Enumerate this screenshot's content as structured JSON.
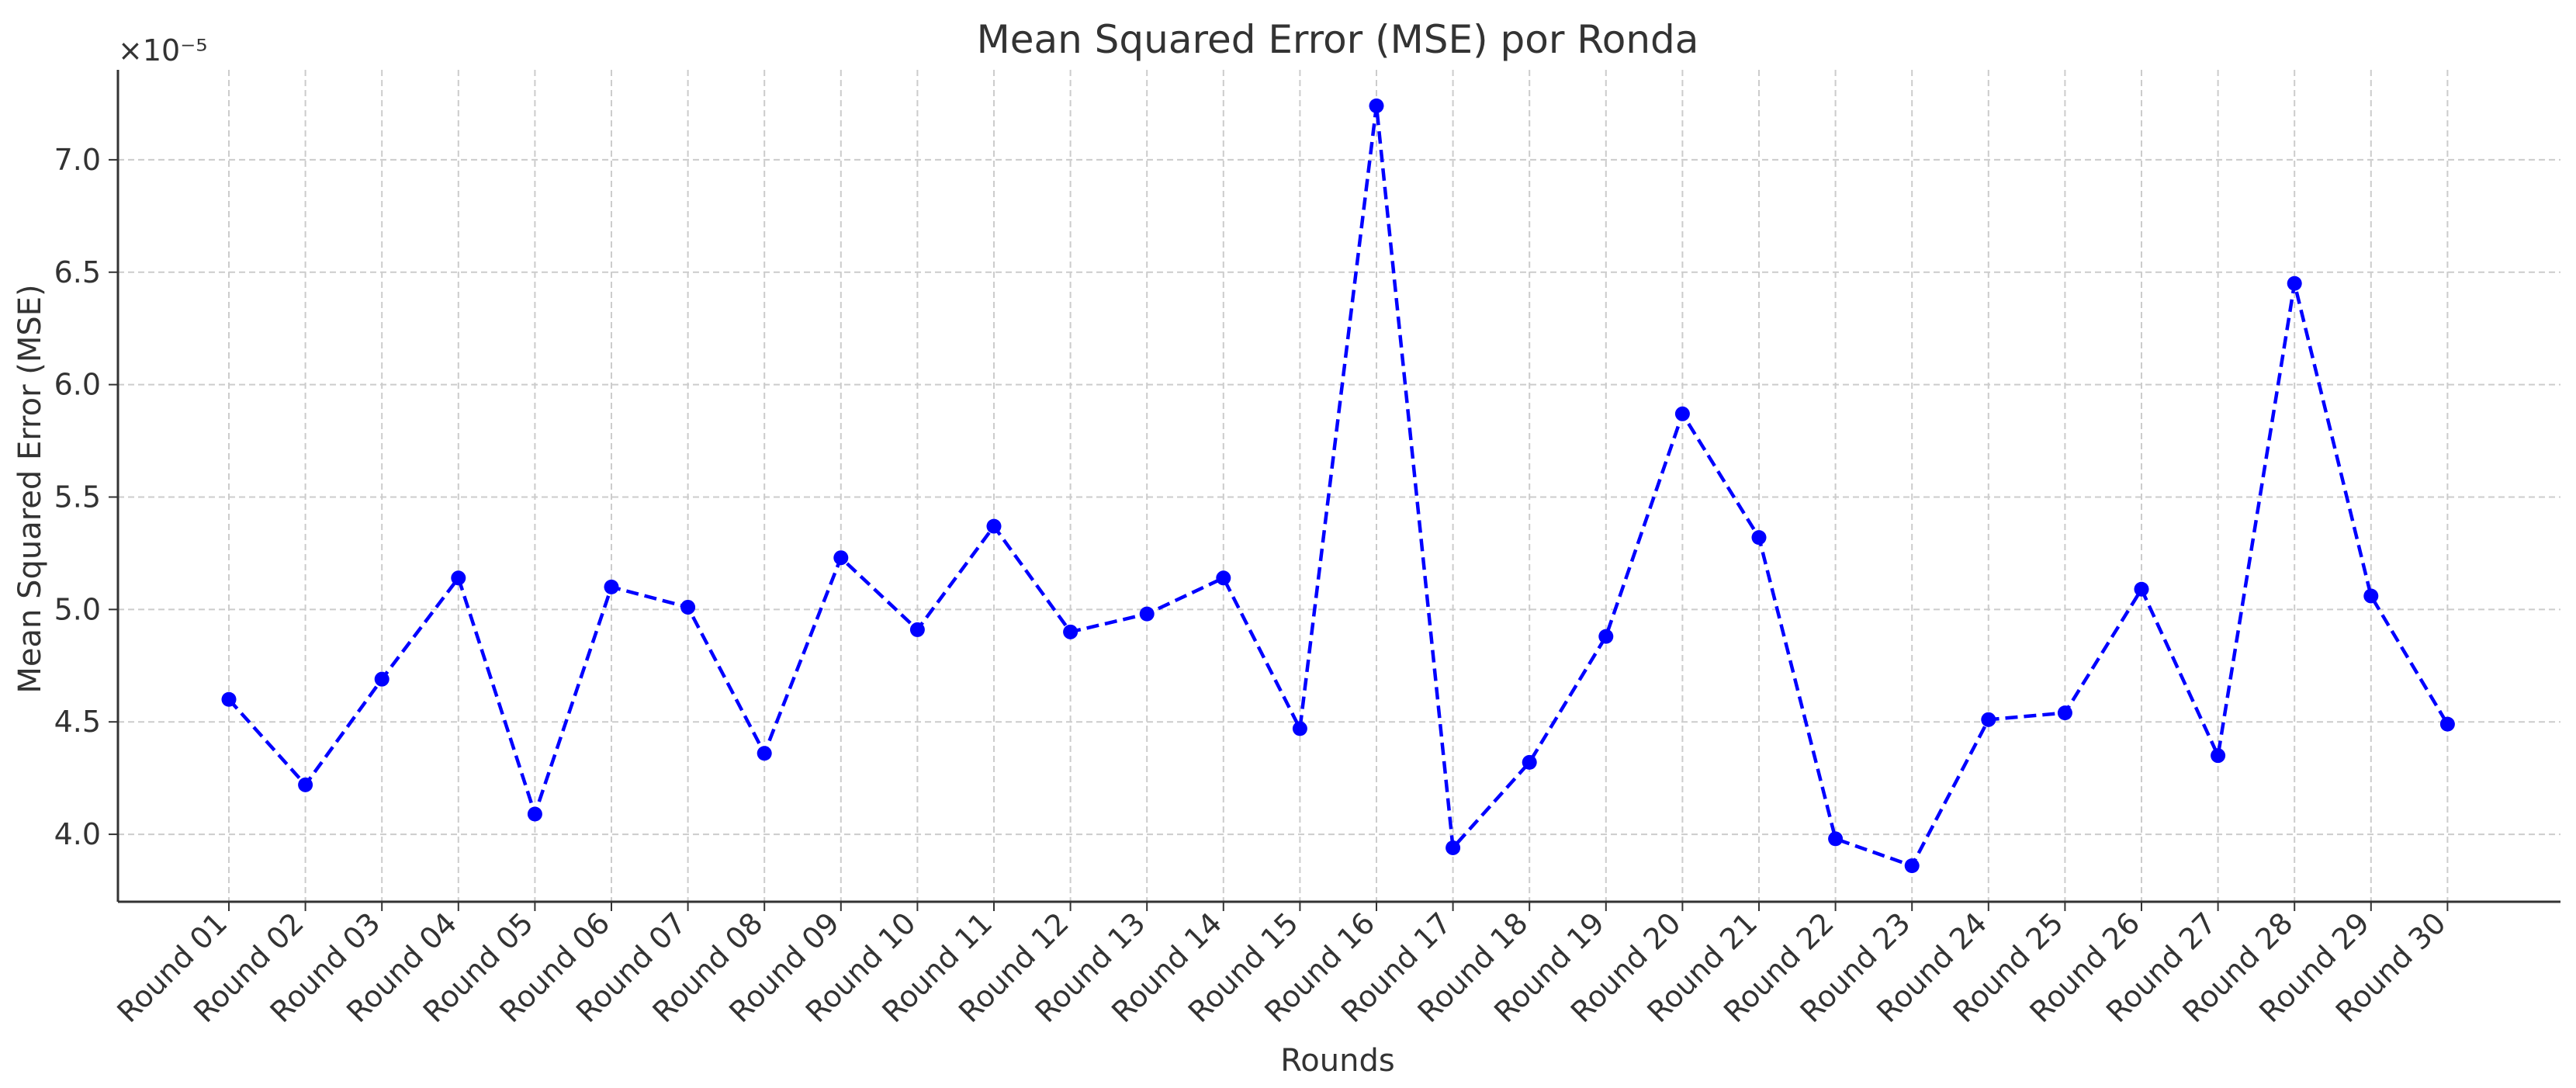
{
  "chart_data": {
    "type": "line",
    "title": "Mean Squared Error (MSE) por Ronda",
    "xlabel": "Rounds",
    "ylabel": "Mean Squared Error (MSE)",
    "y_multiplier_label": "×10⁻⁵",
    "y_scale": 1e-05,
    "ylim": [
      3.7,
      7.4
    ],
    "yticks": [
      4.0,
      4.5,
      5.0,
      5.5,
      6.0,
      6.5,
      7.0
    ],
    "ytick_labels": [
      "4.0",
      "4.5",
      "5.0",
      "5.5",
      "6.0",
      "6.5",
      "7.0"
    ],
    "grid": true,
    "color": "#0000ff",
    "line_style": "dashed",
    "marker": "circle",
    "categories": [
      "Round 01",
      "Round 02",
      "Round 03",
      "Round 04",
      "Round 05",
      "Round 06",
      "Round 07",
      "Round 08",
      "Round 09",
      "Round 10",
      "Round 11",
      "Round 12",
      "Round 13",
      "Round 14",
      "Round 15",
      "Round 16",
      "Round 17",
      "Round 18",
      "Round 19",
      "Round 20",
      "Round 21",
      "Round 22",
      "Round 23",
      "Round 24",
      "Round 25",
      "Round 26",
      "Round 27",
      "Round 28",
      "Round 29",
      "Round 30"
    ],
    "values": [
      4.6,
      4.22,
      4.69,
      5.14,
      4.09,
      5.1,
      5.01,
      4.36,
      5.23,
      4.91,
      5.37,
      4.9,
      4.98,
      5.14,
      4.47,
      7.24,
      3.94,
      4.32,
      4.88,
      5.87,
      5.32,
      3.98,
      3.86,
      4.51,
      4.54,
      5.09,
      4.35,
      6.45,
      5.06,
      4.49
    ]
  }
}
